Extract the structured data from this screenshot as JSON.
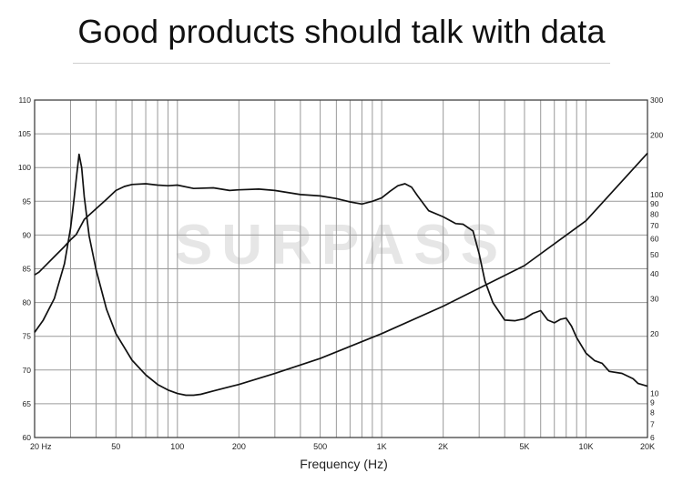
{
  "header": {
    "title": "Good products should talk with data"
  },
  "watermark": {
    "text": "SURPASS"
  },
  "colors": {
    "grid": "#9a9a9a",
    "curve": "#111111",
    "frame": "#333333",
    "watermark": "#e6e6e6"
  },
  "chart_data": {
    "type": "line",
    "title": "",
    "xlabel": "Frequency (Hz)",
    "ylabel": "",
    "x_scale": "log",
    "xlim": [
      20,
      20000
    ],
    "ylim": [
      60,
      110
    ],
    "ylim_right": [
      6,
      300
    ],
    "y2_scale": "log",
    "grid": true,
    "x_ticks": [
      {
        "value": 20,
        "label": "20  Hz"
      },
      {
        "value": 50,
        "label": "50"
      },
      {
        "value": 100,
        "label": "100"
      },
      {
        "value": 200,
        "label": "200"
      },
      {
        "value": 500,
        "label": "500"
      },
      {
        "value": 1000,
        "label": "1K"
      },
      {
        "value": 2000,
        "label": "2K"
      },
      {
        "value": 5000,
        "label": "5K"
      },
      {
        "value": 10000,
        "label": "10K"
      },
      {
        "value": 20000,
        "label": "20K"
      }
    ],
    "y_ticks_left": [
      60,
      65,
      70,
      75,
      80,
      85,
      90,
      95,
      100,
      105,
      110
    ],
    "y_ticks_right": [
      {
        "value": 6,
        "label": "6"
      },
      {
        "value": 7,
        "label": "7"
      },
      {
        "value": 8,
        "label": "8"
      },
      {
        "value": 9,
        "label": "9"
      },
      {
        "value": 10,
        "label": "10"
      },
      {
        "value": 20,
        "label": "20"
      },
      {
        "value": 30,
        "label": "30"
      },
      {
        "value": 40,
        "label": "40"
      },
      {
        "value": 50,
        "label": "50"
      },
      {
        "value": 60,
        "label": "60"
      },
      {
        "value": 70,
        "label": "70"
      },
      {
        "value": 80,
        "label": "80"
      },
      {
        "value": 90,
        "label": "90"
      },
      {
        "value": 100,
        "label": "100"
      },
      {
        "value": 200,
        "label": "200"
      },
      {
        "value": 300,
        "label": "300"
      }
    ],
    "series": [
      {
        "axis": "left",
        "x": [
          20,
          21,
          23,
          25,
          28,
          30,
          32,
          35,
          40,
          45,
          50,
          55,
          60,
          70,
          80,
          90,
          100,
          120,
          150,
          180,
          200,
          250,
          300,
          400,
          500,
          600,
          700,
          800,
          900,
          1000,
          1100,
          1200,
          1300,
          1400,
          1500,
          1700,
          2000,
          2300,
          2500,
          2800,
          3000,
          3200,
          3500,
          4000,
          4500,
          5000,
          5500,
          6000,
          6500,
          7000,
          7500,
          8000,
          8500,
          9000,
          10000,
          11000,
          12000,
          13000,
          15000,
          17000,
          18000,
          20000
        ],
        "values": [
          84.1,
          84.5,
          85.7,
          86.8,
          88.3,
          89.3,
          90.1,
          92.3,
          93.9,
          95.3,
          96.6,
          97.2,
          97.5,
          97.6,
          97.4,
          97.3,
          97.4,
          96.9,
          97.0,
          96.6,
          96.7,
          96.8,
          96.6,
          96.0,
          95.8,
          95.4,
          94.9,
          94.6,
          95.0,
          95.5,
          96.5,
          97.3,
          97.6,
          97.1,
          95.8,
          93.6,
          92.7,
          91.7,
          91.6,
          90.6,
          87.2,
          83.2,
          80.0,
          77.4,
          77.3,
          77.6,
          78.4,
          78.8,
          77.4,
          77.0,
          77.5,
          77.7,
          76.5,
          74.8,
          72.5,
          71.4,
          71.0,
          69.8,
          69.5,
          68.7,
          68.0,
          67.6
        ]
      },
      {
        "axis": "right",
        "x": [
          20,
          22,
          25,
          28,
          30,
          31,
          32,
          33,
          34,
          35,
          37,
          40,
          45,
          50,
          60,
          70,
          80,
          90,
          100,
          110,
          120,
          130,
          150,
          200,
          300,
          500,
          1000,
          2000,
          5000,
          10000,
          20000
        ],
        "values": [
          20.3,
          23.3,
          30.1,
          45.0,
          68.0,
          90.0,
          121.0,
          160.0,
          137.0,
          98.0,
          62.0,
          42.0,
          26.5,
          20.0,
          14.7,
          12.4,
          11.1,
          10.4,
          10.0,
          9.8,
          9.8,
          9.9,
          10.3,
          11.1,
          12.6,
          15.0,
          20.0,
          27.5,
          44.0,
          74.0,
          162.0
        ]
      }
    ]
  }
}
